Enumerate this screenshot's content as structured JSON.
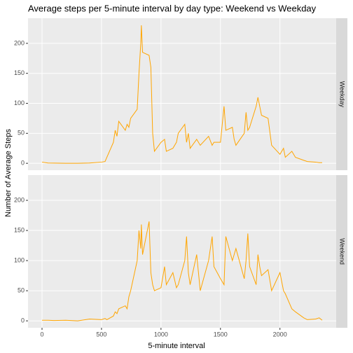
{
  "chart_data": {
    "type": "line",
    "title": "Average steps per 5-minute interval by day type: Weekend vs Weekday",
    "xlabel": "5-minute interval",
    "ylabel": "Number of Average Steps",
    "x": [
      0,
      50,
      100,
      200,
      300,
      400,
      500,
      530,
      545,
      600,
      615,
      630,
      645,
      700,
      715,
      730,
      745,
      800,
      815,
      830,
      835,
      845,
      900,
      915,
      930,
      945,
      1000,
      1030,
      1045,
      1100,
      1130,
      1145,
      1200,
      1215,
      1230,
      1245,
      1300,
      1330,
      1400,
      1430,
      1445,
      1500,
      1530,
      1545,
      1600,
      1615,
      1630,
      1700,
      1715,
      1730,
      1745,
      1800,
      1815,
      1830,
      1845,
      1900,
      1930,
      2000,
      2030,
      2045,
      2100,
      2130,
      2200,
      2230,
      2300,
      2330,
      2355
    ],
    "series": [
      {
        "name": "Weekday",
        "color": "#FFA500",
        "values": [
          2,
          0.5,
          0.3,
          0,
          0,
          0.5,
          2,
          3,
          10,
          35,
          55,
          45,
          70,
          55,
          65,
          60,
          75,
          90,
          150,
          200,
          230,
          185,
          180,
          160,
          50,
          20,
          35,
          40,
          20,
          25,
          35,
          50,
          65,
          35,
          50,
          25,
          40,
          30,
          45,
          30,
          35,
          35,
          95,
          55,
          60,
          40,
          30,
          50,
          85,
          55,
          60,
          95,
          110,
          95,
          80,
          75,
          30,
          15,
          25,
          10,
          20,
          10,
          5,
          3,
          2,
          1,
          1
        ]
      },
      {
        "name": "Weekend",
        "color": "#FFA500",
        "values": [
          1,
          1,
          0.5,
          1,
          0,
          3,
          2,
          4,
          2,
          8,
          15,
          12,
          20,
          25,
          20,
          40,
          50,
          100,
          150,
          120,
          160,
          110,
          165,
          80,
          60,
          50,
          55,
          90,
          60,
          80,
          55,
          60,
          100,
          140,
          80,
          60,
          110,
          50,
          100,
          140,
          90,
          70,
          60,
          140,
          100,
          110,
          120,
          70,
          100,
          145,
          90,
          60,
          110,
          90,
          75,
          85,
          50,
          80,
          50,
          45,
          20,
          15,
          5,
          2,
          3,
          5,
          1
        ]
      }
    ],
    "xlim": [
      -117.75,
      2472.75
    ],
    "ylim": [
      -11.5,
      241.9
    ],
    "xticks": [
      0,
      500,
      1000,
      1500,
      2000
    ],
    "yticks": [
      0,
      50,
      100,
      150,
      200
    ],
    "grid": true
  }
}
